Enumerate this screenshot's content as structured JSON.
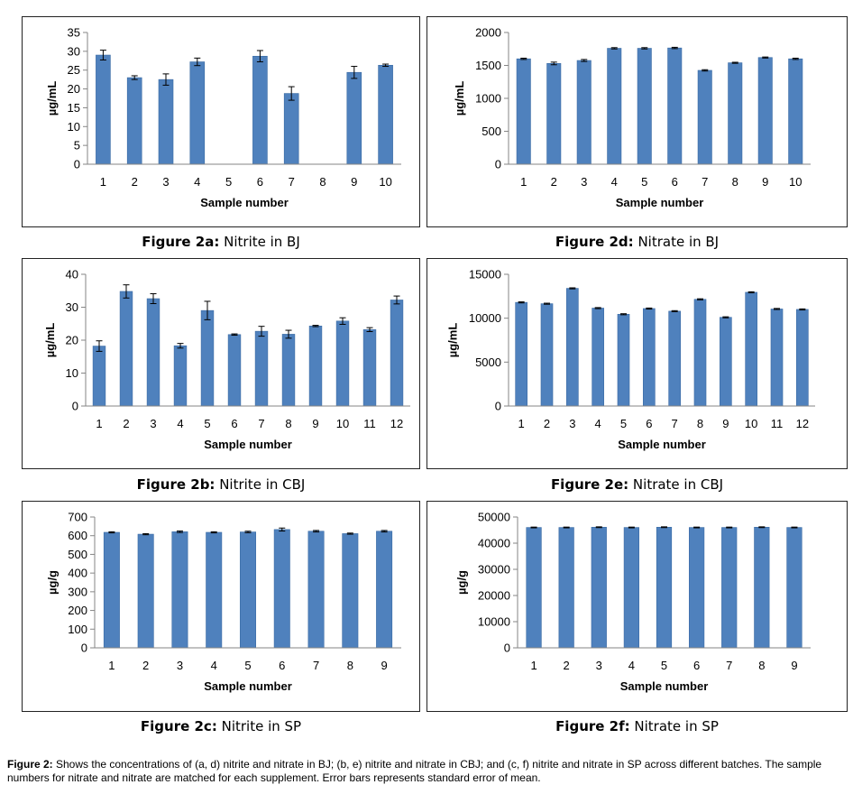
{
  "chart_data": [
    {
      "id": "a",
      "type": "bar",
      "caption_label": "Figure 2a:",
      "caption_text": " Nitrite in BJ",
      "xlabel": "Sample number",
      "ylabel": "µg/mL",
      "ylim": [
        0,
        35
      ],
      "yticks": [
        0,
        5,
        10,
        15,
        20,
        25,
        30,
        35
      ],
      "categories": [
        "1",
        "2",
        "3",
        "4",
        "5",
        "6",
        "7",
        "8",
        "9",
        "10"
      ],
      "values": [
        29,
        23,
        22.5,
        27.2,
        0,
        28.7,
        18.8,
        0,
        24.4,
        26.3
      ],
      "errors": [
        1.3,
        0.5,
        1.5,
        1.0,
        0,
        1.5,
        1.8,
        0,
        1.6,
        0.3
      ]
    },
    {
      "id": "b",
      "type": "bar",
      "caption_label": "Figure 2b:",
      "caption_text": " Nitrite in CBJ",
      "xlabel": "Sample number",
      "ylabel": "µg/mL",
      "ylim": [
        0,
        40
      ],
      "yticks": [
        0,
        10,
        20,
        30,
        40
      ],
      "categories": [
        "1",
        "2",
        "3",
        "4",
        "5",
        "6",
        "7",
        "8",
        "9",
        "10",
        "11",
        "12"
      ],
      "values": [
        18.2,
        34.8,
        32.6,
        18.3,
        29,
        21.7,
        22.7,
        21.8,
        24.3,
        25.8,
        23.2,
        32.2
      ],
      "errors": [
        1.6,
        2.0,
        1.5,
        0.7,
        2.8,
        0.2,
        1.5,
        1.2,
        0.2,
        1.0,
        0.6,
        1.2
      ]
    },
    {
      "id": "c",
      "type": "bar",
      "caption_label": "Figure 2c:",
      "caption_text": " Nitrite in SP",
      "xlabel": "Sample number",
      "ylabel": "µg/g",
      "ylim": [
        0,
        700
      ],
      "yticks": [
        0,
        100,
        200,
        300,
        400,
        500,
        600,
        700
      ],
      "categories": [
        "1",
        "2",
        "3",
        "4",
        "5",
        "6",
        "7",
        "8",
        "9"
      ],
      "values": [
        618,
        608,
        621,
        618,
        620,
        633,
        624,
        611,
        624
      ],
      "errors": [
        3,
        3,
        4,
        3,
        4,
        8,
        4,
        3,
        4
      ]
    },
    {
      "id": "d",
      "type": "bar",
      "caption_label": "Figure 2d:",
      "caption_text": " Nitrate in BJ",
      "xlabel": "Sample number",
      "ylabel": "µg/mL",
      "ylim": [
        0,
        2000
      ],
      "yticks": [
        0,
        500,
        1000,
        1500,
        2000
      ],
      "categories": [
        "1",
        "2",
        "3",
        "4",
        "5",
        "6",
        "7",
        "8",
        "9",
        "10"
      ],
      "values": [
        1600,
        1530,
        1575,
        1760,
        1760,
        1765,
        1425,
        1540,
        1620,
        1600
      ],
      "errors": [
        10,
        20,
        15,
        10,
        10,
        10,
        10,
        8,
        8,
        10
      ]
    },
    {
      "id": "e",
      "type": "bar",
      "caption_label": "Figure 2e:",
      "caption_text": " Nitrate in CBJ",
      "xlabel": "Sample number",
      "ylabel": "µg/mL",
      "ylim": [
        0,
        15000
      ],
      "yticks": [
        0,
        5000,
        10000,
        15000
      ],
      "categories": [
        "1",
        "2",
        "3",
        "4",
        "5",
        "6",
        "7",
        "8",
        "9",
        "10",
        "11",
        "12"
      ],
      "values": [
        11800,
        11650,
        13400,
        11150,
        10450,
        11100,
        10800,
        12150,
        10100,
        12950,
        11050,
        11000
      ],
      "errors": [
        60,
        60,
        60,
        60,
        60,
        60,
        60,
        60,
        60,
        60,
        60,
        60
      ]
    },
    {
      "id": "f",
      "type": "bar",
      "caption_label": "Figure 2f:",
      "caption_text": " Nitrate in SP",
      "xlabel": "Sample number",
      "ylabel": "µg/g",
      "ylim": [
        0,
        50000
      ],
      "yticks": [
        0,
        10000,
        20000,
        30000,
        40000,
        50000
      ],
      "categories": [
        "1",
        "2",
        "3",
        "4",
        "5",
        "6",
        "7",
        "8",
        "9"
      ],
      "values": [
        46000,
        46000,
        46100,
        46000,
        46100,
        46000,
        46000,
        46100,
        46000
      ],
      "errors": [
        150,
        150,
        150,
        150,
        150,
        150,
        150,
        150,
        150
      ]
    }
  ],
  "colors": {
    "bar": "#4f81bd",
    "bar_edge": "#3a6aa3",
    "axis": "#868686",
    "error": "#000000"
  },
  "footnote": {
    "label": "Figure 2:",
    "text": " Shows the concentrations of (a, d) nitrite and nitrate in BJ; (b, e) nitrite and nitrate in CBJ; and (c, f) nitrite and nitrate in SP across different batches. The sample numbers for nitrate and nitrate are matched for each supplement. Error bars represents standard error of mean."
  }
}
